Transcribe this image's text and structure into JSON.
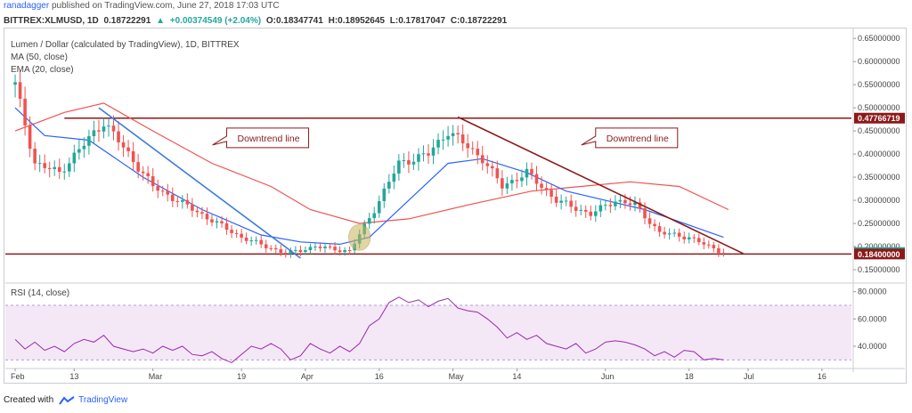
{
  "header": {
    "user": "ranadagger",
    "published": "published on TradingView.com, June 27, 2018 17:03 UTC"
  },
  "quote": {
    "symbol": "BITTREX:XLMUSD, 1D",
    "price": "0.18722291",
    "change": "+0.00374549 (+2.04%)",
    "open": "O:0.18347741",
    "high": "H:0.18952645",
    "low": "L:0.17817047",
    "close": "C:0.18722291"
  },
  "legend": {
    "title": "Lumen / Dollar (calculated by TradingView), 1D, BITTREX",
    "ma": "MA (50, close)",
    "ema": "EMA (20, close)"
  },
  "footer": {
    "created_with": "Created with",
    "brand": "TradingView"
  },
  "colors": {
    "bull": "#26a69a",
    "bear": "#ef5350",
    "ma50": "#ef5350",
    "ema20": "#2962ff",
    "resistance": "#8b1a1a",
    "rsi": "#9c27b0",
    "rsi_band": "#f3e5f5",
    "highlight_ellipse": "#c9b458"
  },
  "chart_data": [
    {
      "type": "candlestick",
      "title": "Lumen / Dollar (calculated by TradingView), 1D, BITTREX",
      "y_scale": "linear",
      "ylim": [
        0.125,
        0.66
      ],
      "y_ticks": [
        {
          "value": 0.65,
          "label": "0.65000000"
        },
        {
          "value": 0.6,
          "label": "0.60000000"
        },
        {
          "value": 0.55,
          "label": "0.55000000"
        },
        {
          "value": 0.5,
          "label": "0.50000000"
        },
        {
          "value": 0.45,
          "label": "0.45000000"
        },
        {
          "value": 0.4,
          "label": "0.40000000"
        },
        {
          "value": 0.35,
          "label": "0.35000000"
        },
        {
          "value": 0.3,
          "label": "0.30000000"
        },
        {
          "value": 0.25,
          "label": "0.25000000"
        },
        {
          "value": 0.2,
          "label": "0.20000000"
        },
        {
          "value": 0.15,
          "label": "0.15000000"
        }
      ],
      "x_ticks": [
        {
          "day": 0,
          "label": "Feb"
        },
        {
          "day": 12,
          "label": "13"
        },
        {
          "day": 28,
          "label": "Mar"
        },
        {
          "day": 46,
          "label": "19"
        },
        {
          "day": 59,
          "label": "Apr"
        },
        {
          "day": 74,
          "label": "16"
        },
        {
          "day": 89,
          "label": "May"
        },
        {
          "day": 102,
          "label": "14"
        },
        {
          "day": 120,
          "label": "Jun"
        },
        {
          "day": 137,
          "label": "18"
        },
        {
          "day": 149,
          "label": "Jul"
        },
        {
          "day": 164,
          "label": "16"
        }
      ],
      "x_range_days": [
        -2,
        170
      ],
      "price_labels": [
        {
          "value": 0.47766719,
          "label": "0.47766719",
          "color": "#8b1a1a"
        },
        {
          "value": 0.18722291,
          "label": "0.18722291",
          "color": "#26a69a"
        },
        {
          "value": 0.184,
          "label": "0.18400000",
          "color": "#8b1a1a"
        }
      ],
      "horizontal_lines": [
        {
          "value": 0.47766719,
          "from_day": 10,
          "to_day": 170
        },
        {
          "value": 0.184,
          "from_day": -2,
          "to_day": 170
        }
      ],
      "trendlines": [
        {
          "name": "downtrend-1",
          "x1": 17,
          "y1": 0.5,
          "x2": 58,
          "y2": 0.175,
          "color": "#3d7be0"
        },
        {
          "name": "downtrend-2",
          "x1": 90,
          "y1": 0.48,
          "x2": 148,
          "y2": 0.185,
          "color": "#8b1a1a"
        }
      ],
      "callouts": [
        {
          "text": "Downtrend line",
          "day": 43,
          "value": 0.435
        },
        {
          "text": "Downtrend line",
          "day": 118,
          "value": 0.435
        }
      ],
      "highlight": {
        "day": 70,
        "value": 0.22,
        "rx_days": 2.2,
        "ry_value": 0.028
      },
      "key_points": [
        {
          "day": 0,
          "close": 0.55
        },
        {
          "day": 4,
          "close": 0.38
        },
        {
          "day": 9,
          "close": 0.36
        },
        {
          "day": 18,
          "close": 0.47
        },
        {
          "day": 28,
          "close": 0.33
        },
        {
          "day": 46,
          "close": 0.22
        },
        {
          "day": 55,
          "close": 0.185
        },
        {
          "day": 61,
          "close": 0.2
        },
        {
          "day": 68,
          "close": 0.19
        },
        {
          "day": 73,
          "close": 0.28
        },
        {
          "day": 78,
          "close": 0.38
        },
        {
          "day": 84,
          "close": 0.4
        },
        {
          "day": 88,
          "close": 0.45
        },
        {
          "day": 95,
          "close": 0.39
        },
        {
          "day": 99,
          "close": 0.33
        },
        {
          "day": 104,
          "close": 0.36
        },
        {
          "day": 110,
          "close": 0.3
        },
        {
          "day": 117,
          "close": 0.27
        },
        {
          "day": 122,
          "close": 0.3
        },
        {
          "day": 126,
          "close": 0.29
        },
        {
          "day": 131,
          "close": 0.23
        },
        {
          "day": 137,
          "close": 0.22
        },
        {
          "day": 141,
          "close": 0.2
        },
        {
          "day": 144,
          "close": 0.187
        }
      ],
      "series": [
        {
          "name": "MA (50, close)",
          "points": [
            {
              "day": 0,
              "value": 0.45
            },
            {
              "day": 10,
              "value": 0.49
            },
            {
              "day": 18,
              "value": 0.51
            },
            {
              "day": 28,
              "value": 0.45
            },
            {
              "day": 40,
              "value": 0.38
            },
            {
              "day": 52,
              "value": 0.33
            },
            {
              "day": 60,
              "value": 0.28
            },
            {
              "day": 70,
              "value": 0.25
            },
            {
              "day": 80,
              "value": 0.26
            },
            {
              "day": 92,
              "value": 0.29
            },
            {
              "day": 105,
              "value": 0.32
            },
            {
              "day": 115,
              "value": 0.33
            },
            {
              "day": 125,
              "value": 0.34
            },
            {
              "day": 135,
              "value": 0.33
            },
            {
              "day": 145,
              "value": 0.28
            }
          ]
        },
        {
          "name": "EMA (20, close)",
          "points": [
            {
              "day": 0,
              "value": 0.5
            },
            {
              "day": 6,
              "value": 0.44
            },
            {
              "day": 15,
              "value": 0.43
            },
            {
              "day": 26,
              "value": 0.35
            },
            {
              "day": 38,
              "value": 0.28
            },
            {
              "day": 50,
              "value": 0.225
            },
            {
              "day": 58,
              "value": 0.21
            },
            {
              "day": 66,
              "value": 0.205
            },
            {
              "day": 72,
              "value": 0.22
            },
            {
              "day": 80,
              "value": 0.3
            },
            {
              "day": 88,
              "value": 0.38
            },
            {
              "day": 95,
              "value": 0.39
            },
            {
              "day": 104,
              "value": 0.36
            },
            {
              "day": 112,
              "value": 0.32
            },
            {
              "day": 120,
              "value": 0.3
            },
            {
              "day": 128,
              "value": 0.28
            },
            {
              "day": 136,
              "value": 0.25
            },
            {
              "day": 144,
              "value": 0.22
            }
          ]
        }
      ]
    },
    {
      "type": "line",
      "title": "RSI (14, close)",
      "ylim": [
        25,
        85
      ],
      "y_ticks": [
        {
          "value": 80,
          "label": "80.0000"
        },
        {
          "value": 60,
          "label": "60.0000"
        },
        {
          "value": 40,
          "label": "40.0000"
        }
      ],
      "band": [
        30,
        70
      ],
      "series": [
        {
          "name": "RSI (14, close)",
          "points": [
            {
              "day": 0,
              "value": 45
            },
            {
              "day": 2,
              "value": 38
            },
            {
              "day": 4,
              "value": 43
            },
            {
              "day": 6,
              "value": 37
            },
            {
              "day": 8,
              "value": 40
            },
            {
              "day": 10,
              "value": 36
            },
            {
              "day": 12,
              "value": 42
            },
            {
              "day": 14,
              "value": 45
            },
            {
              "day": 16,
              "value": 43
            },
            {
              "day": 18,
              "value": 48
            },
            {
              "day": 20,
              "value": 40
            },
            {
              "day": 22,
              "value": 38
            },
            {
              "day": 24,
              "value": 36
            },
            {
              "day": 26,
              "value": 38
            },
            {
              "day": 28,
              "value": 35
            },
            {
              "day": 30,
              "value": 40
            },
            {
              "day": 32,
              "value": 37
            },
            {
              "day": 34,
              "value": 40
            },
            {
              "day": 36,
              "value": 34
            },
            {
              "day": 38,
              "value": 33
            },
            {
              "day": 40,
              "value": 36
            },
            {
              "day": 42,
              "value": 31
            },
            {
              "day": 44,
              "value": 28
            },
            {
              "day": 46,
              "value": 34
            },
            {
              "day": 48,
              "value": 40
            },
            {
              "day": 50,
              "value": 38
            },
            {
              "day": 52,
              "value": 42
            },
            {
              "day": 54,
              "value": 38
            },
            {
              "day": 56,
              "value": 30
            },
            {
              "day": 58,
              "value": 33
            },
            {
              "day": 60,
              "value": 42
            },
            {
              "day": 62,
              "value": 38
            },
            {
              "day": 64,
              "value": 35
            },
            {
              "day": 66,
              "value": 40
            },
            {
              "day": 68,
              "value": 36
            },
            {
              "day": 70,
              "value": 42
            },
            {
              "day": 72,
              "value": 55
            },
            {
              "day": 74,
              "value": 60
            },
            {
              "day": 76,
              "value": 72
            },
            {
              "day": 78,
              "value": 76
            },
            {
              "day": 80,
              "value": 72
            },
            {
              "day": 82,
              "value": 74
            },
            {
              "day": 84,
              "value": 69
            },
            {
              "day": 86,
              "value": 73
            },
            {
              "day": 88,
              "value": 75
            },
            {
              "day": 90,
              "value": 68
            },
            {
              "day": 92,
              "value": 66
            },
            {
              "day": 94,
              "value": 65
            },
            {
              "day": 96,
              "value": 60
            },
            {
              "day": 98,
              "value": 54
            },
            {
              "day": 100,
              "value": 46
            },
            {
              "day": 102,
              "value": 50
            },
            {
              "day": 104,
              "value": 45
            },
            {
              "day": 106,
              "value": 48
            },
            {
              "day": 108,
              "value": 42
            },
            {
              "day": 110,
              "value": 40
            },
            {
              "day": 112,
              "value": 38
            },
            {
              "day": 114,
              "value": 42
            },
            {
              "day": 116,
              "value": 35
            },
            {
              "day": 118,
              "value": 38
            },
            {
              "day": 120,
              "value": 43
            },
            {
              "day": 122,
              "value": 44
            },
            {
              "day": 124,
              "value": 43
            },
            {
              "day": 126,
              "value": 41
            },
            {
              "day": 128,
              "value": 38
            },
            {
              "day": 130,
              "value": 33
            },
            {
              "day": 132,
              "value": 36
            },
            {
              "day": 134,
              "value": 32
            },
            {
              "day": 136,
              "value": 37
            },
            {
              "day": 138,
              "value": 36
            },
            {
              "day": 140,
              "value": 30
            },
            {
              "day": 142,
              "value": 31
            },
            {
              "day": 144,
              "value": 30
            }
          ]
        }
      ]
    }
  ]
}
